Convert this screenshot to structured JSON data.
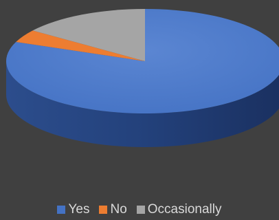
{
  "chart_data": {
    "type": "pie",
    "style": "3d",
    "title": "",
    "categories": [
      "Yes",
      "No",
      "Occasionally"
    ],
    "values": [
      81,
      4,
      15
    ],
    "colors": [
      "#4472c4",
      "#ed7d31",
      "#a5a5a5"
    ],
    "legend_position": "bottom"
  }
}
